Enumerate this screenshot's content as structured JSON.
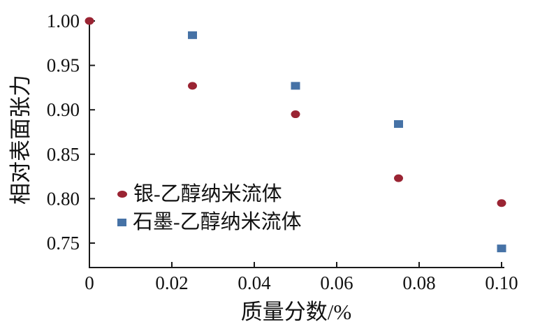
{
  "chart_data": {
    "type": "scatter",
    "title": "",
    "xlabel": "质量分数/%",
    "ylabel": "相对表面张力",
    "xlim": [
      0,
      0.1
    ],
    "ylim": [
      0.75,
      1.0
    ],
    "x_ticks": [
      0,
      0.02,
      0.04,
      0.06,
      0.08,
      0.1
    ],
    "x_tick_labels": [
      "0",
      "0.02",
      "0.04",
      "0.06",
      "0.08",
      "0.10"
    ],
    "y_ticks": [
      1.0,
      0.95,
      0.9,
      0.85,
      0.8,
      0.75
    ],
    "y_tick_labels": [
      "1.00",
      "0.95",
      "0.90",
      "0.85",
      "0.80",
      "0.75"
    ],
    "grid": false,
    "legend_position": "inside-lower-left",
    "axis_color": "#1a1a1a",
    "series": [
      {
        "name": "银-乙醇纳米流体",
        "marker": "circle",
        "color": "#9a2433",
        "points": [
          [
            0,
            1.0
          ],
          [
            0.025,
            0.927
          ],
          [
            0.05,
            0.895
          ],
          [
            0.075,
            0.823
          ],
          [
            0.1,
            0.795
          ]
        ]
      },
      {
        "name": "石墨-乙醇纳米流体",
        "marker": "square",
        "color": "#4672a6",
        "points": [
          [
            0.025,
            0.984
          ],
          [
            0.05,
            0.927
          ],
          [
            0.075,
            0.884
          ],
          [
            0.1,
            0.744
          ]
        ]
      }
    ]
  }
}
